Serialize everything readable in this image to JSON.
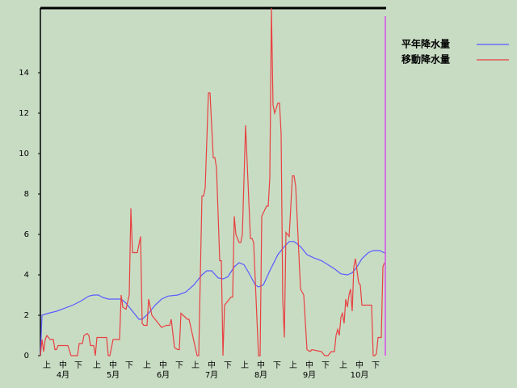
{
  "chart_data": {
    "type": "line",
    "series": [
      {
        "name": "平年降水量",
        "color": "#5a5aff",
        "x": [
          0,
          1,
          5,
          10,
          15,
          20,
          25,
          30,
          33,
          36,
          38,
          42,
          50,
          53,
          57,
          61,
          63,
          67,
          71,
          75,
          79,
          85,
          90,
          95,
          100,
          103,
          106,
          110,
          113,
          116,
          120,
          123,
          126,
          129,
          133,
          135,
          138,
          142,
          147,
          151,
          154,
          157,
          161,
          165,
          169,
          174,
          178,
          182,
          186,
          190,
          193,
          196,
          199,
          203,
          206,
          210,
          214
        ],
        "values": [
          0,
          2.0,
          2.1,
          2.2,
          2.35,
          2.5,
          2.7,
          2.95,
          3.0,
          3.0,
          2.9,
          2.8,
          2.8,
          2.6,
          2.2,
          1.8,
          1.8,
          2.1,
          2.5,
          2.8,
          2.95,
          3.0,
          3.15,
          3.5,
          4.0,
          4.2,
          4.2,
          3.85,
          3.8,
          3.9,
          4.4,
          4.6,
          4.5,
          4.1,
          3.5,
          3.4,
          3.5,
          4.2,
          5.0,
          5.4,
          5.65,
          5.65,
          5.4,
          5.0,
          4.85,
          4.7,
          4.5,
          4.3,
          4.05,
          4.0,
          4.1,
          4.4,
          4.8,
          5.1,
          5.2,
          5.2,
          5.05
        ]
      },
      {
        "name": "移動降水量",
        "color": "#e84040",
        "x": [
          0,
          1,
          2,
          3,
          4,
          5,
          6,
          8,
          9,
          10,
          11,
          12,
          15,
          17,
          19,
          23,
          24,
          26,
          27,
          29,
          30,
          31,
          33,
          34,
          35,
          40,
          41,
          42,
          43,
          45,
          49,
          50,
          51,
          53,
          55,
          56,
          57,
          60,
          62,
          63,
          64,
          66,
          67,
          69,
          75,
          78,
          80,
          81,
          83,
          85,
          86,
          87,
          91,
          92,
          97,
          98,
          100,
          101,
          102,
          104,
          105,
          107,
          108,
          109,
          111,
          112,
          113,
          114,
          118,
          119,
          120,
          121,
          123,
          124,
          125,
          127,
          130,
          131,
          132,
          135,
          136,
          137,
          140,
          141,
          142,
          143,
          144,
          145,
          147,
          148,
          149,
          150,
          151,
          152,
          154,
          156,
          157,
          158,
          161,
          163,
          165,
          167,
          168,
          174,
          176,
          178,
          180,
          182,
          183,
          184,
          185,
          186,
          187,
          188,
          189,
          190,
          191,
          192,
          193,
          194,
          195,
          197,
          198,
          199,
          205,
          206,
          207,
          208,
          209,
          211,
          212,
          213
        ],
        "values": [
          0,
          0.8,
          0.2,
          0.8,
          1.0,
          0.9,
          0.8,
          0.8,
          0.3,
          0.3,
          0.5,
          0.5,
          0.5,
          0.5,
          0,
          0,
          0.6,
          0.6,
          1.0,
          1.1,
          1.0,
          0.5,
          0.5,
          0,
          0.9,
          0.9,
          0.9,
          0,
          0,
          0.8,
          0.8,
          3.0,
          2.4,
          2.3,
          3.0,
          7.3,
          5.1,
          5.1,
          5.9,
          1.6,
          1.5,
          1.5,
          2.8,
          2.0,
          1.4,
          1.5,
          1.5,
          1.8,
          0.4,
          0.3,
          0.3,
          2.1,
          1.8,
          1.8,
          0,
          0,
          7.9,
          7.9,
          8.3,
          13,
          13,
          9.8,
          9.8,
          9.3,
          4.7,
          4.7,
          0,
          2.5,
          2.9,
          2.9,
          6.9,
          6.0,
          5.6,
          5.6,
          6.0,
          11.4,
          5.8,
          5.8,
          5.6,
          0,
          0,
          6.9,
          7.4,
          7.4,
          8.8,
          17.2,
          12.4,
          12.0,
          12.5,
          12.5,
          11.0,
          2.8,
          0.9,
          6.1,
          5.9,
          8.9,
          8.9,
          8.4,
          3.3,
          3.0,
          0.3,
          0.2,
          0.3,
          0.2,
          0,
          0,
          0.2,
          0.2,
          1.0,
          1.3,
          1.0,
          1.9,
          2.1,
          1.6,
          2.8,
          2.4,
          3.0,
          3.3,
          2.2,
          4.4,
          4.8,
          3.6,
          3.5,
          2.5,
          2.5,
          0,
          0,
          0.1,
          0.9,
          0.9,
          4.4,
          4.6
        ]
      }
    ],
    "xlim": [
      0,
      214
    ],
    "ylim": [
      0,
      17.2
    ],
    "yticks": [
      0,
      2,
      4,
      6,
      8,
      10,
      12,
      14
    ],
    "xticks": [
      {
        "value": 4,
        "label": "上"
      },
      {
        "value": 14,
        "label": "中"
      },
      {
        "value": 23.5,
        "label": "下"
      },
      {
        "value": 35,
        "label": "上"
      },
      {
        "value": 45,
        "label": "中"
      },
      {
        "value": 55,
        "label": "下"
      },
      {
        "value": 66,
        "label": "上"
      },
      {
        "value": 76,
        "label": "中"
      },
      {
        "value": 86,
        "label": "下"
      },
      {
        "value": 96,
        "label": "上"
      },
      {
        "value": 106,
        "label": "中"
      },
      {
        "value": 116,
        "label": "下"
      },
      {
        "value": 126.5,
        "label": "上"
      },
      {
        "value": 136.5,
        "label": "中"
      },
      {
        "value": 146.5,
        "label": "下"
      },
      {
        "value": 156.5,
        "label": "上"
      },
      {
        "value": 166.5,
        "label": "中"
      },
      {
        "value": 176.5,
        "label": "下"
      },
      {
        "value": 187.5,
        "label": "上"
      },
      {
        "value": 197.5,
        "label": "中"
      },
      {
        "value": 207.5,
        "label": "下"
      }
    ],
    "month_ticks": [
      {
        "value": 14,
        "label": "4月"
      },
      {
        "value": 45,
        "label": "5月"
      },
      {
        "value": 76,
        "label": "6月"
      },
      {
        "value": 106,
        "label": "7月"
      },
      {
        "value": 136.5,
        "label": "8月"
      },
      {
        "value": 166.5,
        "label": "9月"
      },
      {
        "value": 197.5,
        "label": "10月"
      }
    ],
    "marker_x": 213.5,
    "marker_color": "#d070e0",
    "grid": false
  }
}
